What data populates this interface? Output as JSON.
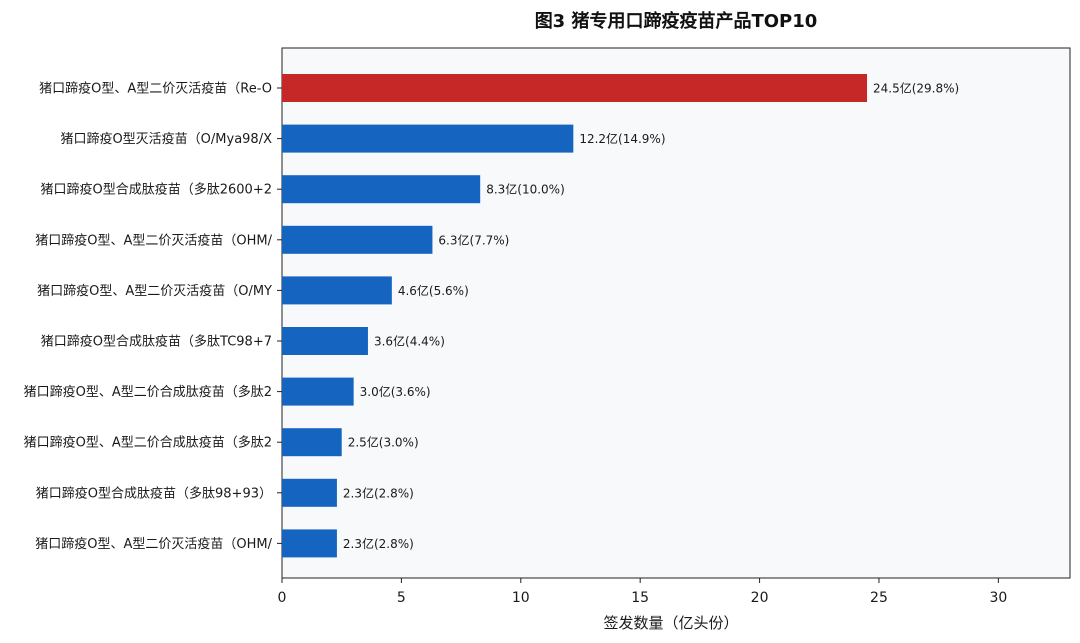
{
  "chart_data": {
    "type": "bar",
    "orientation": "horizontal",
    "title": "图3  猪专用口蹄疫疫苗产品TOP10",
    "xlabel": "签发数量（亿头份）",
    "ylabel": "",
    "xlim": [
      0,
      33
    ],
    "xticks": [
      0,
      5,
      10,
      15,
      20,
      25,
      30
    ],
    "grid": false,
    "categories": [
      "猪口蹄疫O型、A型二价灭活疫苗（Re-O",
      "猪口蹄疫O型灭活疫苗（O/Mya98/X",
      "猪口蹄疫O型合成肽疫苗（多肽2600+2",
      "猪口蹄疫O型、A型二价灭活疫苗（OHM/",
      "猪口蹄疫O型、A型二价灭活疫苗（O/MY",
      "猪口蹄疫O型合成肽疫苗（多肽TC98+7",
      "猪口蹄疫O型、A型二价合成肽疫苗（多肽2",
      "猪口蹄疫O型、A型二价合成肽疫苗（多肽2",
      "猪口蹄疫O型合成肽疫苗（多肽98+93）",
      "猪口蹄疫O型、A型二价灭活疫苗（OHM/"
    ],
    "values": [
      24.5,
      12.2,
      8.3,
      6.3,
      4.6,
      3.6,
      3.0,
      2.5,
      2.3,
      2.3
    ],
    "data_labels": [
      "24.5亿(29.8%)",
      "12.2亿(14.9%)",
      "8.3亿(10.0%)",
      "6.3亿(7.7%)",
      "4.6亿(5.6%)",
      "3.6亿(4.4%)",
      "3.0亿(3.6%)",
      "2.5亿(3.0%)",
      "2.3亿(2.8%)",
      "2.3亿(2.8%)"
    ],
    "colors": {
      "highlight": "#c62828",
      "bar": "#1565c0",
      "plot_background": "#f7f9fb"
    }
  }
}
